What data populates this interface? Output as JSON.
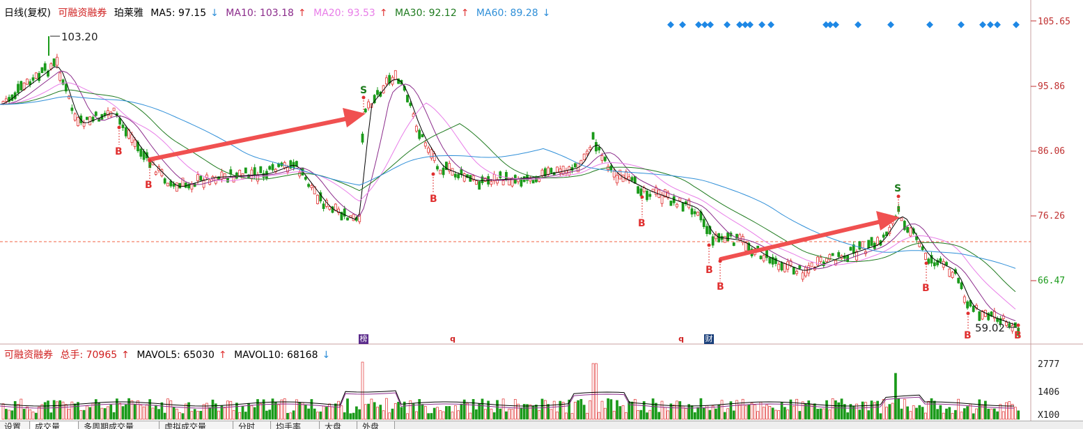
{
  "header": {
    "period": "日线(复权)",
    "margin_label": "可融资融券",
    "stock_name": "珀莱雅",
    "ma": [
      {
        "label": "MA5: 97.15",
        "arrow": "↓",
        "color": "#000000"
      },
      {
        "label": "MA10: 103.18",
        "arrow": "↑",
        "color": "#8b2b8b"
      },
      {
        "label": "MA20: 93.53",
        "arrow": "↑",
        "color": "#e87de8"
      },
      {
        "label": "MA30: 92.12",
        "arrow": "↑",
        "color": "#1e7a1e"
      },
      {
        "label": "MA60: 89.28",
        "arrow": "↓",
        "color": "#2f8fd8"
      }
    ]
  },
  "price_axis": [
    "105.65",
    "95.86",
    "86.06",
    "76.26",
    "66.47"
  ],
  "annotations": {
    "high": "103.20",
    "low": "59.02",
    "buy": "B",
    "sell": "S",
    "event_bang": "榜",
    "event_q": "q",
    "event_cai": "财"
  },
  "volume_header": {
    "margin_label": "可融资融券",
    "total": "总手: 70965",
    "total_arrow": "↑",
    "mavol5": "MAVOL5: 65030",
    "mavol5_arrow": "↑",
    "mavol10": "MAVOL10: 68168",
    "mavol10_arrow": "↓"
  },
  "volume_axis": [
    "2777",
    "1406",
    "X100"
  ],
  "tabs": [
    "设置",
    "成交量",
    "多周期成交量",
    "虚拟成交量",
    "分时",
    "均手率",
    "大盘",
    "外盘"
  ],
  "colors": {
    "up": "#e03030",
    "down": "#1a9a1a",
    "arrow": "#f05050",
    "accent": "#1a6fd6"
  }
}
